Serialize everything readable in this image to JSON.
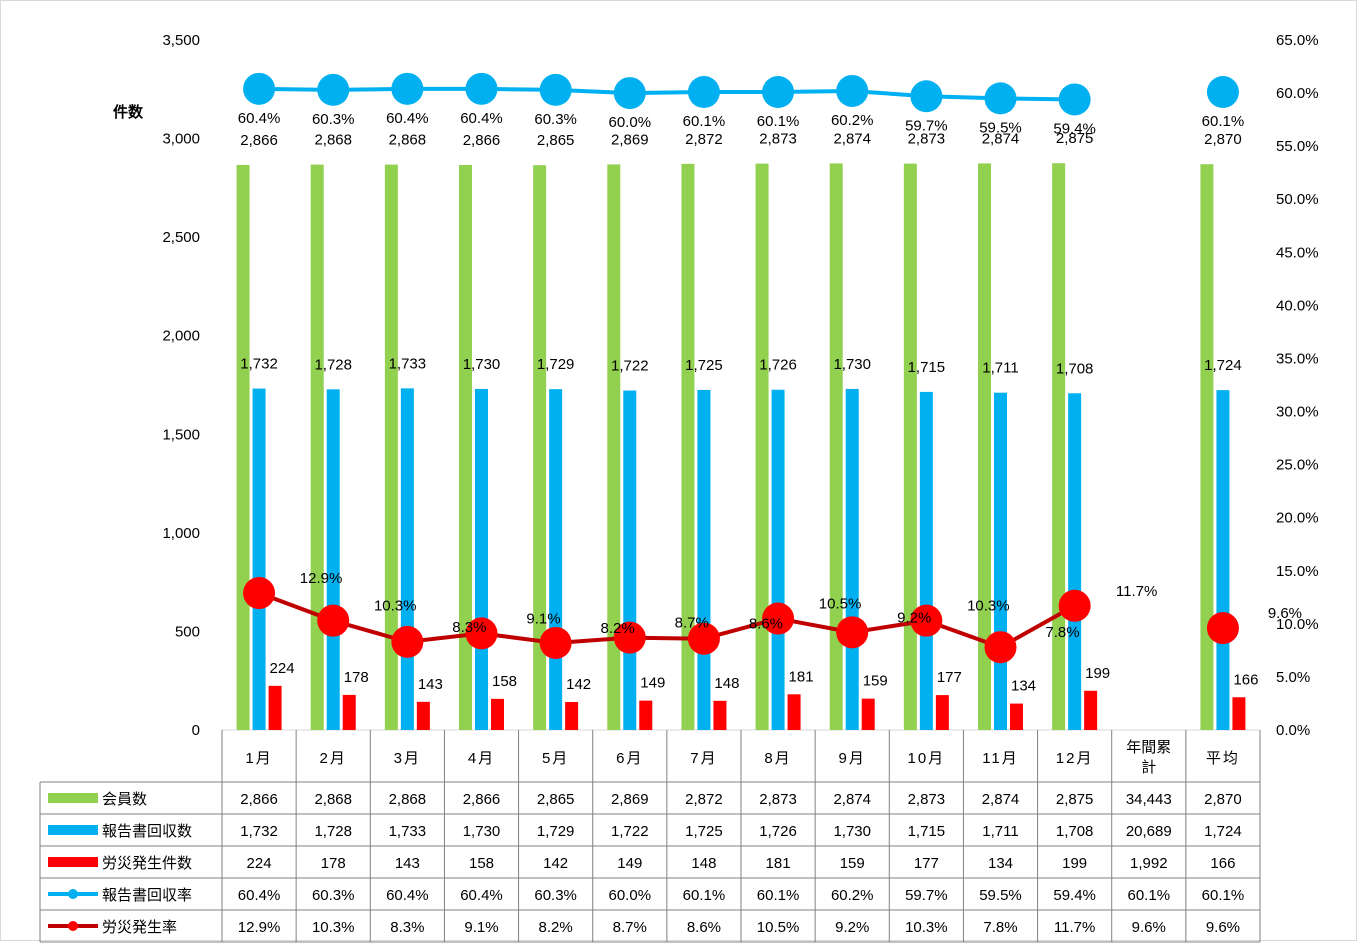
{
  "chart_data": {
    "type": "bar",
    "ylabel": "件数",
    "categories": [
      "1月",
      "2月",
      "3月",
      "4月",
      "5月",
      "6月",
      "7月",
      "8月",
      "9月",
      "10月",
      "11月",
      "12月",
      "年間累計",
      "平均"
    ],
    "y_left": {
      "min": 0,
      "max": 3500,
      "ticks": [
        "0",
        "500",
        "1,000",
        "1,500",
        "2,000",
        "2,500",
        "3,000",
        "3,500"
      ]
    },
    "y_right": {
      "min": 0,
      "max": 65,
      "ticks": [
        "0.0%",
        "5.0%",
        "10.0%",
        "15.0%",
        "20.0%",
        "25.0%",
        "30.0%",
        "35.0%",
        "40.0%",
        "45.0%",
        "50.0%",
        "55.0%",
        "60.0%",
        "65.0%"
      ]
    },
    "legend_placement": "data-table",
    "grid": false,
    "series": [
      {
        "name": "会員数",
        "kind": "bar",
        "axis": "left",
        "color": "#92d050",
        "values": [
          2866,
          2868,
          2868,
          2866,
          2865,
          2869,
          2872,
          2873,
          2874,
          2873,
          2874,
          2875,
          null,
          2870
        ],
        "labels": [
          "2,866",
          "2,868",
          "2,868",
          "2,866",
          "2,865",
          "2,869",
          "2,872",
          "2,873",
          "2,874",
          "2,873",
          "2,874",
          "2,875",
          "",
          "2,870"
        ],
        "table": [
          "2,866",
          "2,868",
          "2,868",
          "2,866",
          "2,865",
          "2,869",
          "2,872",
          "2,873",
          "2,874",
          "2,873",
          "2,874",
          "2,875",
          "34,443",
          "2,870"
        ]
      },
      {
        "name": "報告書回収数",
        "kind": "bar",
        "axis": "left",
        "color": "#00b0f0",
        "values": [
          1732,
          1728,
          1733,
          1730,
          1729,
          1722,
          1725,
          1726,
          1730,
          1715,
          1711,
          1708,
          null,
          1724
        ],
        "labels": [
          "1,732",
          "1,728",
          "1,733",
          "1,730",
          "1,729",
          "1,722",
          "1,725",
          "1,726",
          "1,730",
          "1,715",
          "1,711",
          "1,708",
          "",
          "1,724"
        ],
        "table": [
          "1,732",
          "1,728",
          "1,733",
          "1,730",
          "1,729",
          "1,722",
          "1,725",
          "1,726",
          "1,730",
          "1,715",
          "1,711",
          "1,708",
          "20,689",
          "1,724"
        ]
      },
      {
        "name": "労災発生件数",
        "kind": "bar",
        "axis": "left",
        "color": "#ff0000",
        "values": [
          224,
          178,
          143,
          158,
          142,
          149,
          148,
          181,
          159,
          177,
          134,
          199,
          null,
          166
        ],
        "labels": [
          "224",
          "178",
          "143",
          "158",
          "142",
          "149",
          "148",
          "181",
          "159",
          "177",
          "134",
          "199",
          "",
          "166"
        ],
        "table": [
          "224",
          "178",
          "143",
          "158",
          "142",
          "149",
          "148",
          "181",
          "159",
          "177",
          "134",
          "199",
          "1,992",
          "166"
        ]
      },
      {
        "name": "報告書回収率",
        "kind": "line",
        "axis": "right",
        "color": "#00b0f0",
        "values": [
          60.4,
          60.3,
          60.4,
          60.4,
          60.3,
          60.0,
          60.1,
          60.1,
          60.2,
          59.7,
          59.5,
          59.4,
          null,
          60.1
        ],
        "labels": [
          "60.4%",
          "60.3%",
          "60.4%",
          "60.4%",
          "60.3%",
          "60.0%",
          "60.1%",
          "60.1%",
          "60.2%",
          "59.7%",
          "59.5%",
          "59.4%",
          "",
          "60.1%"
        ],
        "table": [
          "60.4%",
          "60.3%",
          "60.4%",
          "60.4%",
          "60.3%",
          "60.0%",
          "60.1%",
          "60.1%",
          "60.2%",
          "59.7%",
          "59.5%",
          "59.4%",
          "60.1%",
          "60.1%"
        ]
      },
      {
        "name": "労災発生率",
        "kind": "line",
        "axis": "right",
        "color": "#c00000",
        "values": [
          12.9,
          10.3,
          8.3,
          9.1,
          8.2,
          8.7,
          8.6,
          10.5,
          9.2,
          10.3,
          7.8,
          11.7,
          null,
          9.6
        ],
        "labels": [
          "12.9%",
          "10.3%",
          "8.3%",
          "9.1%",
          "8.2%",
          "8.7%",
          "8.6%",
          "10.5%",
          "9.2%",
          "10.3%",
          "7.8%",
          "11.7%",
          "",
          "9.6%"
        ],
        "table": [
          "12.9%",
          "10.3%",
          "8.3%",
          "9.1%",
          "8.2%",
          "8.7%",
          "8.6%",
          "10.5%",
          "9.2%",
          "10.3%",
          "7.8%",
          "11.7%",
          "9.6%",
          "9.6%"
        ]
      }
    ]
  }
}
